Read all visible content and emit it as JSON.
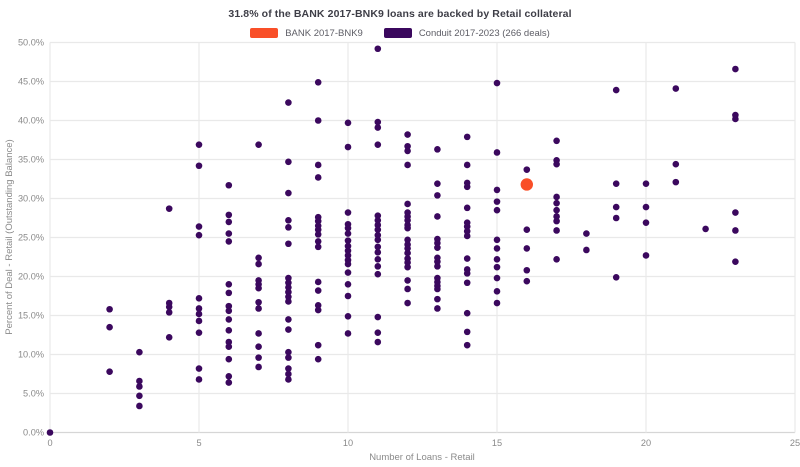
{
  "chart_data": {
    "type": "scatter",
    "title": "31.8% of the BANK 2017-BNK9 loans are backed by Retail collateral",
    "xlabel": "Number of Loans - Retail",
    "ylabel": "Percent of Deal - Retail (Outstanding Balance)",
    "xlim": [
      0,
      25
    ],
    "ylim_percent": [
      0,
      50
    ],
    "x_ticks": [
      "0",
      "5",
      "10",
      "15",
      "20",
      "25"
    ],
    "y_ticks": [
      "0.0%",
      "5.0%",
      "10.0%",
      "15.0%",
      "20.0%",
      "25.0%",
      "30.0%",
      "35.0%",
      "40.0%",
      "45.0%",
      "50.0%"
    ],
    "grid": true,
    "legend_position": "top-center",
    "legend": [
      "BANK 2017-BNK9",
      "Conduit 2017-2023 (266 deals)"
    ],
    "colors": {
      "bank": "#f94f28",
      "conduit": "#3b085e",
      "grid": "#e9e9e9",
      "baseline": "#d6d6d6",
      "tick_text": "#8a8a8a",
      "title_text": "#3e3e47",
      "legend_text": "#5e5e66",
      "background": "#ffffff"
    },
    "series": [
      {
        "name": "BANK 2017-BNK9",
        "role": "highlight",
        "points": [
          [
            16,
            31.8
          ]
        ]
      },
      {
        "name": "Conduit 2017-2023 (266 deals)",
        "role": "population",
        "points": [
          [
            0,
            0.0
          ],
          [
            2,
            15.8
          ],
          [
            2,
            13.5
          ],
          [
            2,
            7.8
          ],
          [
            3,
            10.3
          ],
          [
            3,
            6.6
          ],
          [
            3,
            5.9
          ],
          [
            3,
            4.7
          ],
          [
            3,
            3.4
          ],
          [
            4,
            28.7
          ],
          [
            4,
            16.6
          ],
          [
            4,
            16.1
          ],
          [
            4,
            15.4
          ],
          [
            4,
            12.2
          ],
          [
            5,
            36.9
          ],
          [
            5,
            34.2
          ],
          [
            5,
            26.4
          ],
          [
            5,
            25.3
          ],
          [
            5,
            17.2
          ],
          [
            5,
            15.9
          ],
          [
            5,
            15.2
          ],
          [
            5,
            14.3
          ],
          [
            5,
            12.8
          ],
          [
            5,
            8.2
          ],
          [
            5,
            6.8
          ],
          [
            6,
            31.7
          ],
          [
            6,
            27.9
          ],
          [
            6,
            27.0
          ],
          [
            6,
            25.5
          ],
          [
            6,
            24.5
          ],
          [
            6,
            19.0
          ],
          [
            6,
            17.9
          ],
          [
            6,
            16.2
          ],
          [
            6,
            15.6
          ],
          [
            6,
            14.5
          ],
          [
            6,
            13.1
          ],
          [
            6,
            11.6
          ],
          [
            6,
            11.0
          ],
          [
            6,
            9.4
          ],
          [
            6,
            7.2
          ],
          [
            6,
            6.4
          ],
          [
            7,
            36.9
          ],
          [
            7,
            22.4
          ],
          [
            7,
            21.6
          ],
          [
            7,
            19.5
          ],
          [
            7,
            19.0
          ],
          [
            7,
            18.5
          ],
          [
            7,
            16.7
          ],
          [
            7,
            15.9
          ],
          [
            7,
            12.7
          ],
          [
            7,
            11.0
          ],
          [
            7,
            9.6
          ],
          [
            7,
            8.4
          ],
          [
            8,
            42.3
          ],
          [
            8,
            34.7
          ],
          [
            8,
            30.7
          ],
          [
            8,
            27.2
          ],
          [
            8,
            26.3
          ],
          [
            8,
            24.2
          ],
          [
            8,
            19.8
          ],
          [
            8,
            19.2
          ],
          [
            8,
            18.6
          ],
          [
            8,
            18.0
          ],
          [
            8,
            17.4
          ],
          [
            8,
            16.8
          ],
          [
            8,
            14.5
          ],
          [
            8,
            13.2
          ],
          [
            8,
            10.3
          ],
          [
            8,
            9.6
          ],
          [
            8,
            8.2
          ],
          [
            8,
            7.5
          ],
          [
            8,
            6.8
          ],
          [
            9,
            44.9
          ],
          [
            9,
            40.0
          ],
          [
            9,
            34.3
          ],
          [
            9,
            32.7
          ],
          [
            9,
            27.6
          ],
          [
            9,
            27.1
          ],
          [
            9,
            26.5
          ],
          [
            9,
            26.0
          ],
          [
            9,
            25.4
          ],
          [
            9,
            24.5
          ],
          [
            9,
            23.8
          ],
          [
            9,
            19.3
          ],
          [
            9,
            18.2
          ],
          [
            9,
            16.3
          ],
          [
            9,
            15.7
          ],
          [
            9,
            11.2
          ],
          [
            9,
            9.4
          ],
          [
            10,
            39.7
          ],
          [
            10,
            36.6
          ],
          [
            10,
            28.2
          ],
          [
            10,
            26.7
          ],
          [
            10,
            26.2
          ],
          [
            10,
            25.5
          ],
          [
            10,
            24.6
          ],
          [
            10,
            23.9
          ],
          [
            10,
            23.3
          ],
          [
            10,
            22.7
          ],
          [
            10,
            22.1
          ],
          [
            10,
            21.6
          ],
          [
            10,
            20.5
          ],
          [
            10,
            19.0
          ],
          [
            10,
            17.5
          ],
          [
            10,
            14.9
          ],
          [
            10,
            12.7
          ],
          [
            11,
            49.2
          ],
          [
            11,
            39.8
          ],
          [
            11,
            39.1
          ],
          [
            11,
            36.9
          ],
          [
            11,
            27.8
          ],
          [
            11,
            27.2
          ],
          [
            11,
            26.6
          ],
          [
            11,
            26.0
          ],
          [
            11,
            25.3
          ],
          [
            11,
            24.7
          ],
          [
            11,
            23.8
          ],
          [
            11,
            23.1
          ],
          [
            11,
            22.2
          ],
          [
            11,
            21.3
          ],
          [
            11,
            20.3
          ],
          [
            11,
            14.8
          ],
          [
            11,
            12.8
          ],
          [
            11,
            11.6
          ],
          [
            12,
            38.2
          ],
          [
            12,
            36.7
          ],
          [
            12,
            36.1
          ],
          [
            12,
            34.3
          ],
          [
            12,
            29.3
          ],
          [
            12,
            28.2
          ],
          [
            12,
            27.7
          ],
          [
            12,
            27.2
          ],
          [
            12,
            26.6
          ],
          [
            12,
            26.2
          ],
          [
            12,
            24.7
          ],
          [
            12,
            24.1
          ],
          [
            12,
            23.6
          ],
          [
            12,
            23.0
          ],
          [
            12,
            22.3
          ],
          [
            12,
            21.8
          ],
          [
            12,
            21.2
          ],
          [
            12,
            19.5
          ],
          [
            12,
            18.4
          ],
          [
            12,
            16.6
          ],
          [
            13,
            36.3
          ],
          [
            13,
            31.9
          ],
          [
            13,
            30.4
          ],
          [
            13,
            27.7
          ],
          [
            13,
            24.8
          ],
          [
            13,
            24.3
          ],
          [
            13,
            23.7
          ],
          [
            13,
            22.4
          ],
          [
            13,
            21.9
          ],
          [
            13,
            21.3
          ],
          [
            13,
            19.8
          ],
          [
            13,
            19.3
          ],
          [
            13,
            18.8
          ],
          [
            13,
            18.4
          ],
          [
            13,
            17.1
          ],
          [
            13,
            15.9
          ],
          [
            14,
            37.9
          ],
          [
            14,
            34.3
          ],
          [
            14,
            32.0
          ],
          [
            14,
            31.5
          ],
          [
            14,
            28.8
          ],
          [
            14,
            26.9
          ],
          [
            14,
            26.4
          ],
          [
            14,
            25.8
          ],
          [
            14,
            25.2
          ],
          [
            14,
            22.3
          ],
          [
            14,
            20.9
          ],
          [
            14,
            20.4
          ],
          [
            14,
            19.2
          ],
          [
            14,
            15.3
          ],
          [
            14,
            12.9
          ],
          [
            14,
            11.2
          ],
          [
            15,
            44.8
          ],
          [
            15,
            35.9
          ],
          [
            15,
            31.1
          ],
          [
            15,
            29.6
          ],
          [
            15,
            28.5
          ],
          [
            15,
            24.7
          ],
          [
            15,
            23.6
          ],
          [
            15,
            22.2
          ],
          [
            15,
            21.2
          ],
          [
            15,
            19.8
          ],
          [
            15,
            18.1
          ],
          [
            15,
            16.6
          ],
          [
            16,
            33.7
          ],
          [
            16,
            26.0
          ],
          [
            16,
            23.6
          ],
          [
            16,
            20.8
          ],
          [
            16,
            19.4
          ],
          [
            17,
            37.4
          ],
          [
            17,
            34.9
          ],
          [
            17,
            34.4
          ],
          [
            17,
            30.2
          ],
          [
            17,
            29.4
          ],
          [
            17,
            28.5
          ],
          [
            17,
            27.7
          ],
          [
            17,
            27.1
          ],
          [
            17,
            25.9
          ],
          [
            17,
            22.2
          ],
          [
            18,
            25.5
          ],
          [
            18,
            23.4
          ],
          [
            19,
            43.9
          ],
          [
            19,
            31.9
          ],
          [
            19,
            28.9
          ],
          [
            19,
            27.5
          ],
          [
            19,
            19.9
          ],
          [
            20,
            31.9
          ],
          [
            20,
            28.9
          ],
          [
            20,
            26.9
          ],
          [
            20,
            22.7
          ],
          [
            21,
            44.1
          ],
          [
            21,
            34.4
          ],
          [
            21,
            32.1
          ],
          [
            22,
            26.1
          ],
          [
            23,
            46.6
          ],
          [
            23,
            40.7
          ],
          [
            23,
            40.2
          ],
          [
            23,
            28.2
          ],
          [
            23,
            25.9
          ],
          [
            23,
            21.9
          ]
        ]
      }
    ]
  }
}
